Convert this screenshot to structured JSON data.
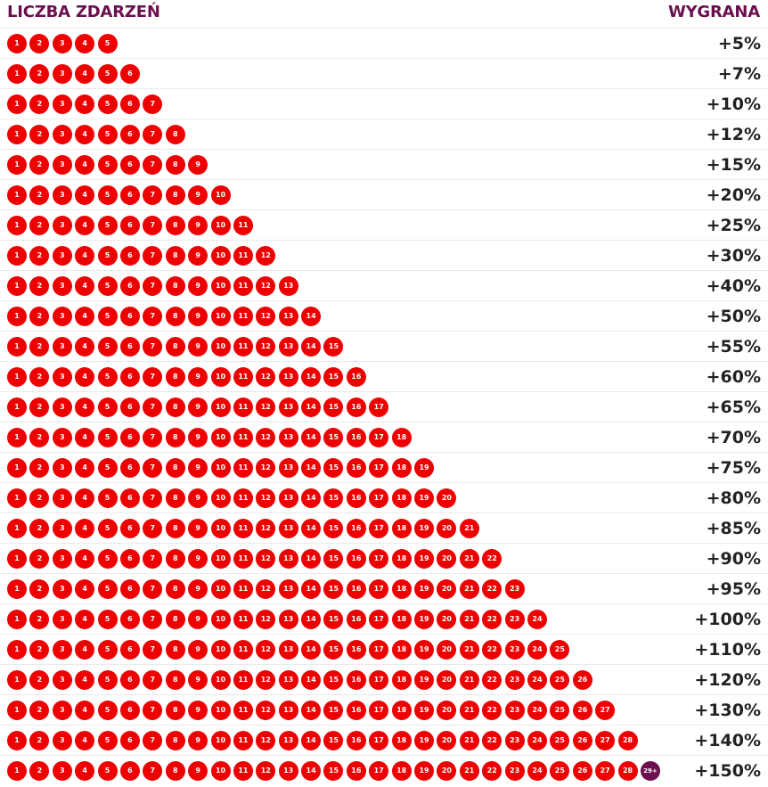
{
  "header": {
    "left_title": "LICZBA ZDARZEŃ",
    "right_title": "WYGRANA"
  },
  "colors": {
    "accent": "#6b0f4f",
    "ball": "#ee0000",
    "text": "#222222"
  },
  "rows": [
    {
      "balls": [
        "1",
        "2",
        "3",
        "4",
        "5"
      ],
      "bonus": "+5%"
    },
    {
      "balls": [
        "1",
        "2",
        "3",
        "4",
        "5",
        "6"
      ],
      "bonus": "+7%"
    },
    {
      "balls": [
        "1",
        "2",
        "3",
        "4",
        "5",
        "6",
        "7"
      ],
      "bonus": "+10%"
    },
    {
      "balls": [
        "1",
        "2",
        "3",
        "4",
        "5",
        "6",
        "7",
        "8"
      ],
      "bonus": "+12%"
    },
    {
      "balls": [
        "1",
        "2",
        "3",
        "4",
        "5",
        "6",
        "7",
        "8",
        "9"
      ],
      "bonus": "+15%"
    },
    {
      "balls": [
        "1",
        "2",
        "3",
        "4",
        "5",
        "6",
        "7",
        "8",
        "9",
        "10"
      ],
      "bonus": "+20%"
    },
    {
      "balls": [
        "1",
        "2",
        "3",
        "4",
        "5",
        "6",
        "7",
        "8",
        "9",
        "10",
        "11"
      ],
      "bonus": "+25%"
    },
    {
      "balls": [
        "1",
        "2",
        "3",
        "4",
        "5",
        "6",
        "7",
        "8",
        "9",
        "10",
        "11",
        "12"
      ],
      "bonus": "+30%"
    },
    {
      "balls": [
        "1",
        "2",
        "3",
        "4",
        "5",
        "6",
        "7",
        "8",
        "9",
        "10",
        "11",
        "12",
        "13"
      ],
      "bonus": "+40%"
    },
    {
      "balls": [
        "1",
        "2",
        "3",
        "4",
        "5",
        "6",
        "7",
        "8",
        "9",
        "10",
        "11",
        "12",
        "13",
        "14"
      ],
      "bonus": "+50%"
    },
    {
      "balls": [
        "1",
        "2",
        "3",
        "4",
        "5",
        "6",
        "7",
        "8",
        "9",
        "10",
        "11",
        "12",
        "13",
        "14",
        "15"
      ],
      "bonus": "+55%"
    },
    {
      "balls": [
        "1",
        "2",
        "3",
        "4",
        "5",
        "6",
        "7",
        "8",
        "9",
        "10",
        "11",
        "12",
        "13",
        "14",
        "15",
        "16"
      ],
      "bonus": "+60%"
    },
    {
      "balls": [
        "1",
        "2",
        "3",
        "4",
        "5",
        "6",
        "7",
        "8",
        "9",
        "10",
        "11",
        "12",
        "13",
        "14",
        "15",
        "16",
        "17"
      ],
      "bonus": "+65%"
    },
    {
      "balls": [
        "1",
        "2",
        "3",
        "4",
        "5",
        "6",
        "7",
        "8",
        "9",
        "10",
        "11",
        "12",
        "13",
        "14",
        "15",
        "16",
        "17",
        "18"
      ],
      "bonus": "+70%"
    },
    {
      "balls": [
        "1",
        "2",
        "3",
        "4",
        "5",
        "6",
        "7",
        "8",
        "9",
        "10",
        "11",
        "12",
        "13",
        "14",
        "15",
        "16",
        "17",
        "18",
        "19"
      ],
      "bonus": "+75%"
    },
    {
      "balls": [
        "1",
        "2",
        "3",
        "4",
        "5",
        "6",
        "7",
        "8",
        "9",
        "10",
        "11",
        "12",
        "13",
        "14",
        "15",
        "16",
        "17",
        "18",
        "19",
        "20"
      ],
      "bonus": "+80%"
    },
    {
      "balls": [
        "1",
        "2",
        "3",
        "4",
        "5",
        "6",
        "7",
        "8",
        "9",
        "10",
        "11",
        "12",
        "13",
        "14",
        "15",
        "16",
        "17",
        "18",
        "19",
        "20",
        "21"
      ],
      "bonus": "+85%"
    },
    {
      "balls": [
        "1",
        "2",
        "3",
        "4",
        "5",
        "6",
        "7",
        "8",
        "9",
        "10",
        "11",
        "12",
        "13",
        "14",
        "15",
        "16",
        "17",
        "18",
        "19",
        "20",
        "21",
        "22"
      ],
      "bonus": "+90%"
    },
    {
      "balls": [
        "1",
        "2",
        "3",
        "4",
        "5",
        "6",
        "7",
        "8",
        "9",
        "10",
        "11",
        "12",
        "13",
        "14",
        "15",
        "16",
        "17",
        "18",
        "19",
        "20",
        "21",
        "22",
        "23"
      ],
      "bonus": "+95%"
    },
    {
      "balls": [
        "1",
        "2",
        "3",
        "4",
        "5",
        "6",
        "7",
        "8",
        "9",
        "10",
        "11",
        "12",
        "13",
        "14",
        "15",
        "16",
        "17",
        "18",
        "19",
        "20",
        "21",
        "22",
        "23",
        "24"
      ],
      "bonus": "+100%"
    },
    {
      "balls": [
        "1",
        "2",
        "3",
        "4",
        "5",
        "6",
        "7",
        "8",
        "9",
        "10",
        "11",
        "12",
        "13",
        "14",
        "15",
        "16",
        "17",
        "18",
        "19",
        "20",
        "21",
        "22",
        "23",
        "24",
        "25"
      ],
      "bonus": "+110%"
    },
    {
      "balls": [
        "1",
        "2",
        "3",
        "4",
        "5",
        "6",
        "7",
        "8",
        "9",
        "10",
        "11",
        "12",
        "13",
        "14",
        "15",
        "16",
        "17",
        "18",
        "19",
        "20",
        "21",
        "22",
        "23",
        "24",
        "25",
        "26"
      ],
      "bonus": "+120%"
    },
    {
      "balls": [
        "1",
        "2",
        "3",
        "4",
        "5",
        "6",
        "7",
        "8",
        "9",
        "10",
        "11",
        "12",
        "13",
        "14",
        "15",
        "16",
        "17",
        "18",
        "19",
        "20",
        "21",
        "22",
        "23",
        "24",
        "25",
        "26",
        "27"
      ],
      "bonus": "+130%"
    },
    {
      "balls": [
        "1",
        "2",
        "3",
        "4",
        "5",
        "6",
        "7",
        "8",
        "9",
        "10",
        "11",
        "12",
        "13",
        "14",
        "15",
        "16",
        "17",
        "18",
        "19",
        "20",
        "21",
        "22",
        "23",
        "24",
        "25",
        "26",
        "27",
        "28"
      ],
      "bonus": "+140%"
    },
    {
      "balls": [
        "1",
        "2",
        "3",
        "4",
        "5",
        "6",
        "7",
        "8",
        "9",
        "10",
        "11",
        "12",
        "13",
        "14",
        "15",
        "16",
        "17",
        "18",
        "19",
        "20",
        "21",
        "22",
        "23",
        "24",
        "25",
        "26",
        "27",
        "28",
        "29+"
      ],
      "bonus": "+150%"
    }
  ]
}
